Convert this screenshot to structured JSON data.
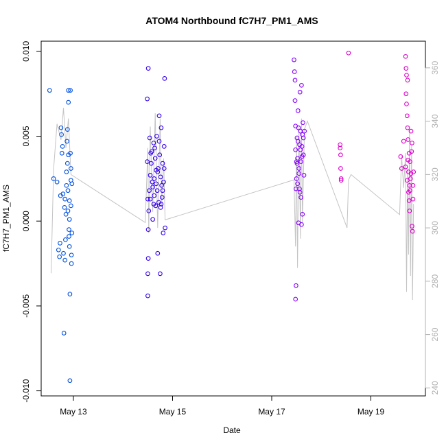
{
  "chart_data": {
    "type": "scatter",
    "title": "ATOM4 Northbound fC7H7_PM1_AMS",
    "xlabel": "Date",
    "ylabel": "fC7H7_PM1_AMS",
    "x_unit": "days (May 2016)",
    "xlim": [
      12.35,
      20.1
    ],
    "ylim": [
      -0.0103,
      0.0106
    ],
    "x_ticks": [
      {
        "value": 13,
        "label": "May 13"
      },
      {
        "value": 15,
        "label": "May 15"
      },
      {
        "value": 17,
        "label": "May 17"
      },
      {
        "value": 19,
        "label": "May 19"
      }
    ],
    "y_ticks": [
      {
        "value": -0.01,
        "label": "-0.010"
      },
      {
        "value": -0.005,
        "label": "-0.005"
      },
      {
        "value": 0,
        "label": "0.000"
      },
      {
        "value": 0.005,
        "label": "0.005"
      },
      {
        "value": 0.01,
        "label": "0.010"
      }
    ],
    "y2lim": [
      237,
      370
    ],
    "y2_ticks": [
      240,
      260,
      280,
      300,
      320,
      340,
      360
    ],
    "grid": false,
    "legend": "none",
    "colors": {
      "early": "#0044dd",
      "mid": "#4400ee",
      "late": "#8800ff",
      "end": "#dd00cc",
      "trace": "#c4c4c4",
      "right_axis": "#b0b0b0"
    },
    "series": [
      {
        "color": "#0050e0",
        "points": [
          [
            12.52,
            0.0077
          ],
          [
            12.6,
            0.0025
          ],
          [
            12.67,
            0.0023
          ],
          [
            12.7,
            -0.0017
          ],
          [
            12.72,
            -0.0021
          ],
          [
            12.73,
            -0.0013
          ],
          [
            12.74,
            0.0015
          ],
          [
            12.75,
            0.0055
          ],
          [
            12.76,
            0.0051
          ],
          [
            12.77,
            0.004
          ],
          [
            12.78,
            0.0044
          ],
          [
            12.79,
            0.0016
          ],
          [
            12.8,
            -0.0019
          ],
          [
            12.81,
            -0.0066
          ],
          [
            12.82,
            0.0008
          ],
          [
            12.83,
            -0.0023
          ],
          [
            12.84,
            -0.0011
          ],
          [
            12.85,
            0.0004
          ],
          [
            12.86,
            0.0029
          ],
          [
            12.87,
            0.0047
          ],
          [
            12.88,
            0.0054
          ],
          [
            12.88,
            0.0034
          ],
          [
            12.89,
            0.0018
          ],
          [
            12.9,
            0.007
          ],
          [
            12.9,
            0.0077
          ],
          [
            12.9,
            0.0039
          ],
          [
            12.91,
            -0.0009
          ],
          [
            12.91,
            -0.0005
          ],
          [
            12.92,
            0.0001
          ],
          [
            12.92,
            -0.0015
          ],
          [
            12.93,
            -0.0043
          ],
          [
            12.93,
            -0.0094
          ],
          [
            12.94,
            0.0077
          ],
          [
            12.94,
            0.004
          ],
          [
            12.95,
            0.0031
          ],
          [
            12.95,
            0.0024
          ],
          [
            12.96,
            -0.0025
          ],
          [
            12.96,
            -0.002
          ],
          [
            12.97,
            -0.0007
          ],
          [
            12.97,
            0.0022
          ],
          [
            12.83,
            0.0013
          ],
          [
            12.86,
            0.0021
          ],
          [
            12.89,
            0.0006
          ],
          [
            12.92,
            0.0012
          ],
          [
            12.95,
            0.0009
          ]
        ]
      },
      {
        "color": "#3300ee",
        "points": [
          [
            14.49,
            0.0072
          ],
          [
            14.51,
            0.009
          ],
          [
            14.49,
            0.0035
          ],
          [
            14.5,
            0.0013
          ],
          [
            14.51,
            -0.0005
          ],
          [
            14.51,
            -0.0022
          ],
          [
            14.5,
            -0.0031
          ],
          [
            14.5,
            -0.0044
          ],
          [
            14.53,
            0.0018
          ],
          [
            14.55,
            0.0027
          ],
          [
            14.58,
            0.0041
          ],
          [
            14.6,
            0.0001
          ],
          [
            14.62,
            0.0046
          ],
          [
            14.63,
            0.0025
          ],
          [
            14.65,
            0.0037
          ],
          [
            14.67,
            0.0022
          ],
          [
            14.68,
            0.005
          ],
          [
            14.7,
            0.0029
          ],
          [
            14.72,
            0.0011
          ],
          [
            14.73,
            0.0062
          ],
          [
            14.74,
            0.0039
          ],
          [
            14.75,
            -0.0031
          ],
          [
            14.76,
            0.0008
          ],
          [
            14.77,
            0.0055
          ],
          [
            14.78,
            0.0021
          ],
          [
            14.8,
            0.0034
          ],
          [
            14.81,
            -0.0007
          ],
          [
            14.83,
            0.0044
          ],
          [
            14.84,
            0.0084
          ],
          [
            14.85,
            -0.0004
          ],
          [
            14.55,
            0.0013
          ],
          [
            14.57,
            0.0034
          ],
          [
            14.6,
            0.002
          ],
          [
            14.63,
            0.0015
          ],
          [
            14.66,
            0.0009
          ],
          [
            14.7,
            -0.0019
          ],
          [
            14.73,
            0.0047
          ],
          [
            14.76,
            0.0026
          ],
          [
            14.8,
            0.0018
          ],
          [
            14.83,
            0.0031
          ],
          [
            14.52,
            0.0006
          ],
          [
            14.56,
            0.004
          ],
          [
            14.64,
            0.0043
          ],
          [
            14.69,
            0.0018
          ],
          [
            14.77,
            0.001
          ],
          [
            14.82,
            0.0023
          ],
          [
            14.59,
            0.0023
          ],
          [
            14.71,
            0.0031
          ],
          [
            14.54,
            0.0049
          ],
          [
            14.62,
            0.001
          ],
          [
            14.67,
            0.003
          ],
          [
            14.79,
            0.0014
          ]
        ]
      },
      {
        "color": "#8800ff",
        "points": [
          [
            17.45,
            0.0095
          ],
          [
            17.46,
            0.0088
          ],
          [
            17.47,
            0.0083
          ],
          [
            17.47,
            0.0071
          ],
          [
            17.48,
            0.0056
          ],
          [
            17.48,
            0.0042
          ],
          [
            17.49,
            0.0019
          ],
          [
            17.49,
            -0.0038
          ],
          [
            17.48,
            -0.0046
          ],
          [
            17.5,
            0.0035
          ],
          [
            17.51,
            0.0049
          ],
          [
            17.52,
            0.0022
          ],
          [
            17.53,
            0.0065
          ],
          [
            17.54,
            -0.0001
          ],
          [
            17.55,
            0.0031
          ],
          [
            17.56,
            0.0045
          ],
          [
            17.57,
            0.0076
          ],
          [
            17.58,
            0.0053
          ],
          [
            17.59,
            0.0014
          ],
          [
            17.6,
            0.008
          ],
          [
            17.61,
            0.0038
          ],
          [
            17.62,
            0.0004
          ],
          [
            17.63,
            0.0058
          ],
          [
            17.64,
            0.0049
          ],
          [
            17.65,
            0.0027
          ],
          [
            17.66,
            0.0053
          ],
          [
            17.52,
            0.0037
          ],
          [
            17.55,
            0.0028
          ],
          [
            17.58,
            0.0042
          ],
          [
            17.61,
            0.0044
          ],
          [
            17.5,
            0.0025
          ],
          [
            17.53,
            0.0047
          ],
          [
            17.56,
            0.0019
          ],
          [
            17.59,
            0.0035
          ],
          [
            17.62,
            0.0051
          ],
          [
            17.64,
            0.0039
          ],
          [
            17.51,
            0.0034
          ],
          [
            17.57,
            0.0017
          ],
          [
            17.6,
            -0.0002
          ],
          [
            17.54,
            0.0055
          ]
        ]
      },
      {
        "color": "#dd00cc",
        "points": [
          [
            18.38,
            0.0045
          ],
          [
            18.38,
            0.0043
          ],
          [
            18.39,
            0.0039
          ],
          [
            18.39,
            0.0031
          ],
          [
            18.4,
            0.0025
          ],
          [
            18.4,
            0.0024
          ],
          [
            18.55,
            0.0099
          ],
          [
            19.6,
            0.0038
          ],
          [
            19.62,
            0.0031
          ],
          [
            19.66,
            0.0047
          ],
          [
            19.7,
            0.0097
          ],
          [
            19.71,
            0.009
          ],
          [
            19.72,
            0.0086
          ],
          [
            19.72,
            0.0069
          ],
          [
            19.73,
            0.0062
          ],
          [
            19.74,
            0.0055
          ],
          [
            19.75,
            0.0048
          ],
          [
            19.76,
            0.0017
          ],
          [
            19.77,
            0.0012
          ],
          [
            19.78,
            0.0006
          ],
          [
            19.79,
            0.0035
          ],
          [
            19.8,
            0.0025
          ],
          [
            19.81,
            0.0053
          ],
          [
            19.82,
            0.0041
          ],
          [
            19.83,
            -0.0003
          ],
          [
            19.84,
            -0.0006
          ],
          [
            19.85,
            0.0021
          ],
          [
            19.86,
            0.0029
          ],
          [
            19.7,
            0.0032
          ],
          [
            19.73,
            0.0024
          ],
          [
            19.75,
            0.0036
          ],
          [
            19.77,
            0.004
          ],
          [
            19.79,
            0.0018
          ],
          [
            19.81,
            0.0028
          ],
          [
            19.83,
            0.0046
          ],
          [
            19.85,
            0.0013
          ],
          [
            19.71,
            0.0075
          ],
          [
            19.74,
            0.0083
          ],
          [
            19.76,
            0.0029
          ],
          [
            19.78,
            0.0021
          ]
        ]
      }
    ],
    "right_axis_trace": {
      "color": "#c4c4c4",
      "points": [
        [
          12.55,
          283
        ],
        [
          12.6,
          322
        ],
        [
          12.67,
          339
        ],
        [
          12.75,
          333
        ],
        [
          12.8,
          345
        ],
        [
          12.85,
          330
        ],
        [
          12.9,
          341
        ],
        [
          12.95,
          320
        ],
        [
          14.45,
          302
        ],
        [
          14.5,
          330
        ],
        [
          14.52,
          298
        ],
        [
          14.55,
          338
        ],
        [
          14.6,
          306
        ],
        [
          14.65,
          343
        ],
        [
          14.7,
          300
        ],
        [
          14.75,
          341
        ],
        [
          14.78,
          308
        ],
        [
          14.82,
          326
        ],
        [
          14.85,
          303
        ],
        [
          17.45,
          318
        ],
        [
          17.48,
          293
        ],
        [
          17.5,
          334
        ],
        [
          17.52,
          285
        ],
        [
          17.55,
          338
        ],
        [
          17.58,
          296
        ],
        [
          17.6,
          341
        ],
        [
          17.62,
          302
        ],
        [
          17.66,
          337
        ],
        [
          17.72,
          340
        ],
        [
          18.52,
          300
        ],
        [
          18.55,
          318
        ],
        [
          18.6,
          320
        ],
        [
          19.58,
          305
        ],
        [
          19.62,
          327
        ],
        [
          19.66,
          315
        ],
        [
          19.7,
          328
        ],
        [
          19.72,
          276
        ],
        [
          19.74,
          323
        ],
        [
          19.76,
          290
        ],
        [
          19.78,
          337
        ],
        [
          19.8,
          282
        ],
        [
          19.82,
          331
        ],
        [
          19.84,
          273
        ],
        [
          19.86,
          309
        ]
      ]
    }
  }
}
